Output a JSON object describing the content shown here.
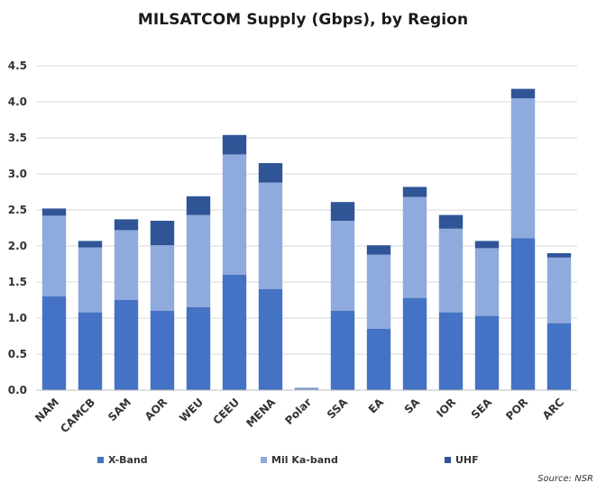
{
  "chart_data": {
    "type": "bar",
    "stacked": true,
    "title": "MILSATCOM Supply (Gbps), by Region",
    "xlabel": "",
    "ylabel": "",
    "ylim": [
      0,
      4.5
    ],
    "yticks": [
      "0.0",
      "0.5",
      "1.0",
      "1.5",
      "2.0",
      "2.5",
      "3.0",
      "3.5",
      "4.0",
      "4.5"
    ],
    "grid": true,
    "legend_position": "bottom",
    "categories": [
      "NAM",
      "CAMCB",
      "SAM",
      "AOR",
      "WEU",
      "CEEU",
      "MENA",
      "Polar",
      "SSA",
      "EA",
      "SA",
      "IOR",
      "SEA",
      "POR",
      "ARC"
    ],
    "series": [
      {
        "name": "X-Band",
        "color": "#4472c4",
        "values": [
          1.3,
          1.08,
          1.25,
          1.1,
          1.15,
          1.6,
          1.4,
          0.0,
          1.1,
          0.85,
          1.28,
          1.08,
          1.03,
          2.11,
          0.93
        ]
      },
      {
        "name": "Mil Ka-band",
        "color": "#8faadc",
        "values": [
          1.12,
          0.9,
          0.97,
          0.91,
          1.28,
          1.67,
          1.48,
          0.02,
          1.25,
          1.03,
          1.4,
          1.16,
          0.94,
          1.94,
          0.91
        ]
      },
      {
        "name": "UHF",
        "color": "#2f5597",
        "values": [
          0.1,
          0.09,
          0.15,
          0.34,
          0.26,
          0.27,
          0.27,
          0.01,
          0.26,
          0.13,
          0.14,
          0.19,
          0.1,
          0.13,
          0.06
        ]
      }
    ],
    "source": "Source: NSR"
  }
}
